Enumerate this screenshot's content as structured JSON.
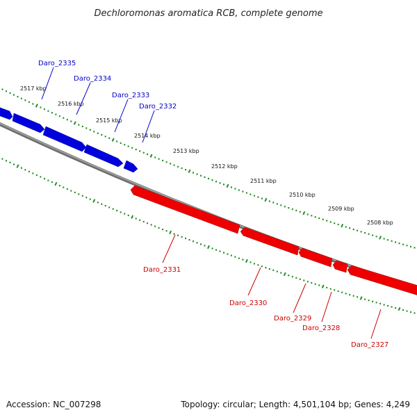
{
  "title": "Dechloromonas aromatica RCB, complete genome",
  "footer": {
    "accession": "Accession: NC_007298",
    "summary": "Topology: circular; Length: 4,501,104 bp; Genes: 4,249"
  },
  "colors": {
    "backbone": "#808080",
    "forward": "#0000dd",
    "reverse": "#ee0000",
    "ticks": "#228b22",
    "forward_label": "#0000cc",
    "reverse_label": "#cc0000"
  },
  "kbp_labels": [
    "2517 kbp",
    "2516 kbp",
    "2515 kbp",
    "2514 kbp",
    "2513 kbp",
    "2512 kbp",
    "2511 kbp",
    "2510 kbp",
    "2509 kbp",
    "2508 kbp"
  ],
  "forward_genes": [
    "Daro_2335",
    "Daro_2334",
    "Daro_2333",
    "Daro_2332"
  ],
  "reverse_genes": [
    "Daro_2331",
    "Daro_2330",
    "Daro_2329",
    "Daro_2328",
    "Daro_2327"
  ]
}
